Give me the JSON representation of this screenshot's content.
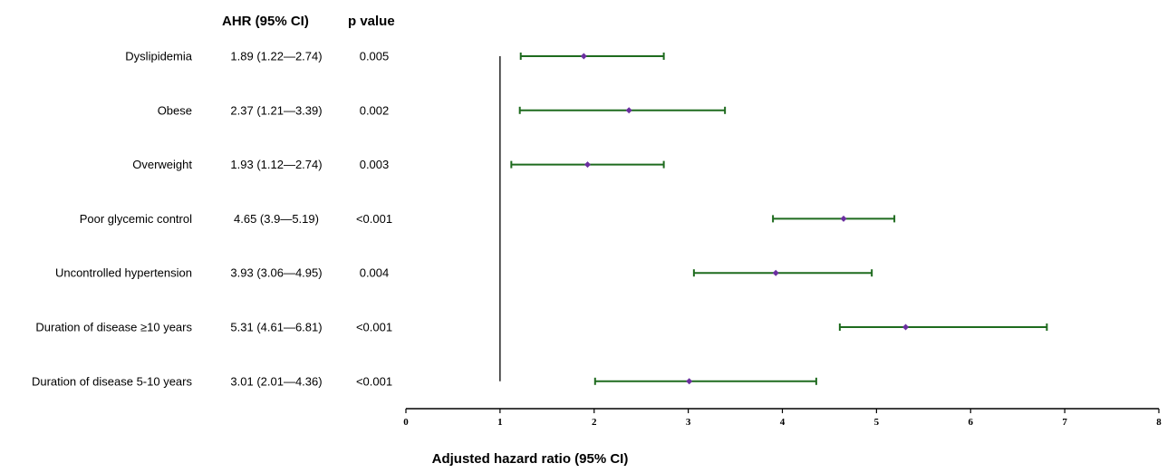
{
  "chart_data": {
    "type": "forest",
    "headers": {
      "estimate": "AHR (95% CI)",
      "p": "p value"
    },
    "rows": [
      {
        "label": "Dyslipidemia",
        "estimate_text": "1.89 (1.22—2.74)",
        "p_text": "0.005",
        "ahr": 1.89,
        "lower": 1.22,
        "upper": 2.74
      },
      {
        "label": "Obese",
        "estimate_text": "2.37 (1.21—3.39)",
        "p_text": "0.002",
        "ahr": 2.37,
        "lower": 1.21,
        "upper": 3.39
      },
      {
        "label": "Overweight",
        "estimate_text": "1.93 (1.12—2.74)",
        "p_text": "0.003",
        "ahr": 1.93,
        "lower": 1.12,
        "upper": 2.74
      },
      {
        "label": "Poor glycemic control",
        "estimate_text": "4.65 (3.9—5.19)",
        "p_text": "<0.001",
        "ahr": 4.65,
        "lower": 3.9,
        "upper": 5.19
      },
      {
        "label": "Uncontrolled  hypertension",
        "estimate_text": "3.93 (3.06—4.95)",
        "p_text": "0.004",
        "ahr": 3.93,
        "lower": 3.06,
        "upper": 4.95
      },
      {
        "label": "Duration  of disease ≥10 years",
        "estimate_text": "5.31 (4.61—6.81)",
        "p_text": "<0.001",
        "ahr": 5.31,
        "lower": 4.61,
        "upper": 6.81
      },
      {
        "label": "Duration  of disease 5-10 years",
        "estimate_text": "3.01 (2.01—4.36)",
        "p_text": "<0.001",
        "ahr": 3.01,
        "lower": 2.01,
        "upper": 4.36
      }
    ],
    "xlim": [
      0,
      8
    ],
    "xticks": [
      "0",
      "1",
      "2",
      "3",
      "4",
      "5",
      "6",
      "7",
      "8"
    ],
    "reference_line": 1,
    "xlabel": "Adjusted hazard ratio (95% CI)",
    "grid": false,
    "colors": {
      "ci": "#1e6b1e",
      "point": "#6b2fa0",
      "axis": "#000000"
    }
  }
}
